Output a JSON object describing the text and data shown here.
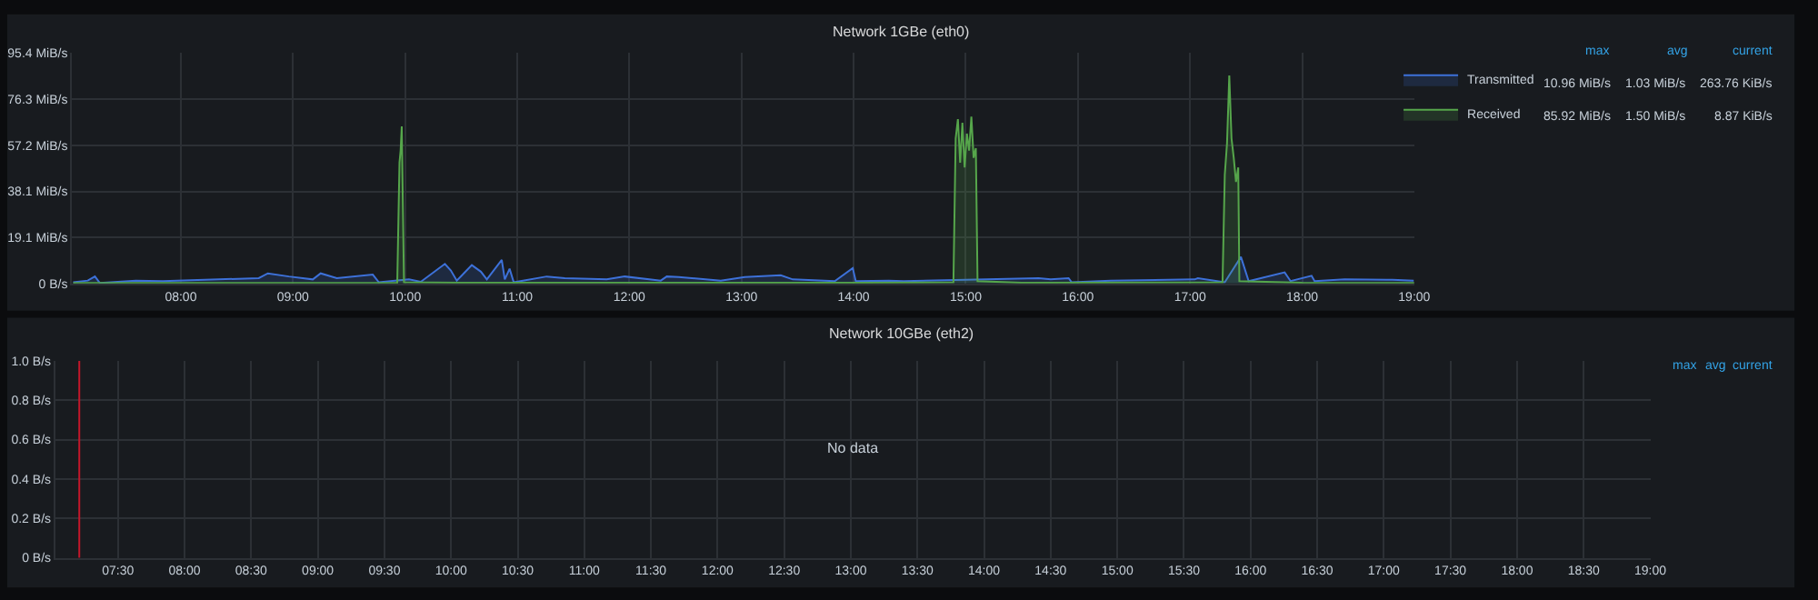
{
  "chart_data": [
    {
      "type": "area",
      "title": "Network 1GBe (eth0)",
      "grid": true,
      "legend": "right",
      "xlim": [
        7.03,
        19.0
      ],
      "xticks": [
        {
          "value": 8,
          "label": "08:00"
        },
        {
          "value": 9,
          "label": "09:00"
        },
        {
          "value": 10,
          "label": "10:00"
        },
        {
          "value": 11,
          "label": "11:00"
        },
        {
          "value": 12,
          "label": "12:00"
        },
        {
          "value": 13,
          "label": "13:00"
        },
        {
          "value": 14,
          "label": "14:00"
        },
        {
          "value": 15,
          "label": "15:00"
        },
        {
          "value": 16,
          "label": "16:00"
        },
        {
          "value": 17,
          "label": "17:00"
        },
        {
          "value": 18,
          "label": "18:00"
        },
        {
          "value": 19,
          "label": "19:00"
        }
      ],
      "ylim": [
        0,
        95.4
      ],
      "yticks": [
        {
          "value": 0,
          "label": "0 B/s"
        },
        {
          "value": 19.1,
          "label": "19.1 MiB/s"
        },
        {
          "value": 38.1,
          "label": "38.1 MiB/s"
        },
        {
          "value": 57.2,
          "label": "57.2 MiB/s"
        },
        {
          "value": 76.3,
          "label": "76.3 MiB/s"
        },
        {
          "value": 95.4,
          "label": "95.4 MiB/s"
        }
      ],
      "series": [
        {
          "name": "Transmitted",
          "color": "#3d71d9",
          "x": [
            7.04,
            7.17,
            7.234,
            7.278,
            7.599,
            7.839,
            8.695,
            8.776,
            8.963,
            9.177,
            9.247,
            9.391,
            9.712,
            9.766,
            10.034,
            10.14,
            10.355,
            10.408,
            10.461,
            10.595,
            10.676,
            10.729,
            10.862,
            10.889,
            10.932,
            10.969,
            11.263,
            11.424,
            11.798,
            11.959,
            12.28,
            12.334,
            12.441,
            12.815,
            13.029,
            13.35,
            13.457,
            13.832,
            13.992,
            14.019,
            14.313,
            14.446,
            15.65,
            15.757,
            15.917,
            15.945,
            16.293,
            17.042,
            17.069,
            17.31,
            17.454,
            17.523,
            17.844,
            17.897,
            18.084,
            18.111,
            18.379,
            18.806,
            18.995
          ],
          "values": [
            0.5,
            1.2,
            2.9,
            0.2,
            1.2,
            1.0,
            2.2,
            4.2,
            2.9,
            1.7,
            4.2,
            2.2,
            3.7,
            0.5,
            1.7,
            0.7,
            8.1,
            5.4,
            1.2,
            7.6,
            4.9,
            1.7,
            9.8,
            1.7,
            6.1,
            0.5,
            2.9,
            2.2,
            1.7,
            2.9,
            1.2,
            2.9,
            2.7,
            1.2,
            2.7,
            3.4,
            1.7,
            1.0,
            6.4,
            1.0,
            1.2,
            1.0,
            2.2,
            1.7,
            2.2,
            0.5,
            1.2,
            1.7,
            2.2,
            0.5,
            11.0,
            1.0,
            4.6,
            1.0,
            3.2,
            1.0,
            1.7,
            1.5,
            1.2
          ]
        },
        {
          "name": "Received",
          "color": "#56a64b",
          "x": [
            7.04,
            9.5,
            9.93,
            9.95,
            9.96,
            9.97,
            9.99,
            10.5,
            12.0,
            14.0,
            14.89,
            14.91,
            14.93,
            14.95,
            14.97,
            14.99,
            15.01,
            15.03,
            15.05,
            15.07,
            15.09,
            15.105,
            15.5,
            17.29,
            17.31,
            17.33,
            17.35,
            17.37,
            17.39,
            17.41,
            17.43,
            17.44,
            18.0,
            19.0
          ],
          "values": [
            0.2,
            0.2,
            0.3,
            50,
            55,
            65,
            0.5,
            0.3,
            0.3,
            0.3,
            0.5,
            60,
            68,
            50,
            66.5,
            48,
            62,
            55,
            69,
            52,
            56,
            1,
            0.3,
            0.5,
            45,
            58,
            86,
            60,
            52,
            42,
            48,
            1,
            0.3,
            0.2
          ]
        }
      ],
      "annotations": [
        "max",
        "avg",
        "current",
        "10.96 MiB/s",
        "1.03 MiB/s",
        "263.76 KiB/s",
        "85.92 MiB/s",
        "1.50 MiB/s",
        "8.87 KiB/s"
      ]
    },
    {
      "type": "line",
      "title": "Network 10GBe (eth2)",
      "grid": true,
      "xlim": [
        7.03,
        19.0
      ],
      "xticks": [
        {
          "value": 7.5,
          "label": "07:30"
        },
        {
          "value": 8,
          "label": "08:00"
        },
        {
          "value": 8.5,
          "label": "08:30"
        },
        {
          "value": 9,
          "label": "09:00"
        },
        {
          "value": 9.5,
          "label": "09:30"
        },
        {
          "value": 10,
          "label": "10:00"
        },
        {
          "value": 10.5,
          "label": "10:30"
        },
        {
          "value": 11,
          "label": "11:00"
        },
        {
          "value": 11.5,
          "label": "11:30"
        },
        {
          "value": 12,
          "label": "12:00"
        },
        {
          "value": 12.5,
          "label": "12:30"
        },
        {
          "value": 13,
          "label": "13:00"
        },
        {
          "value": 13.5,
          "label": "13:30"
        },
        {
          "value": 14,
          "label": "14:00"
        },
        {
          "value": 14.5,
          "label": "14:30"
        },
        {
          "value": 15,
          "label": "15:00"
        },
        {
          "value": 15.5,
          "label": "15:30"
        },
        {
          "value": 16,
          "label": "16:00"
        },
        {
          "value": 16.5,
          "label": "16:30"
        },
        {
          "value": 17,
          "label": "17:00"
        },
        {
          "value": 17.5,
          "label": "17:30"
        },
        {
          "value": 18,
          "label": "18:00"
        },
        {
          "value": 18.5,
          "label": "18:30"
        },
        {
          "value": 19,
          "label": "19:00"
        }
      ],
      "ylim": [
        0,
        1.0
      ],
      "yticks": [
        {
          "value": 0,
          "label": "0 B/s"
        },
        {
          "value": 0.2,
          "label": "0.2 B/s"
        },
        {
          "value": 0.4,
          "label": "0.4 B/s"
        },
        {
          "value": 0.6,
          "label": "0.6 B/s"
        },
        {
          "value": 0.8,
          "label": "0.8 B/s"
        },
        {
          "value": 1.0,
          "label": "1.0 B/s"
        }
      ],
      "ref_lines": [
        {
          "axis": "x",
          "value": 7.21,
          "color": "#c4162a"
        }
      ],
      "annotations": [
        "No data",
        "max",
        "avg",
        "current"
      ]
    }
  ]
}
